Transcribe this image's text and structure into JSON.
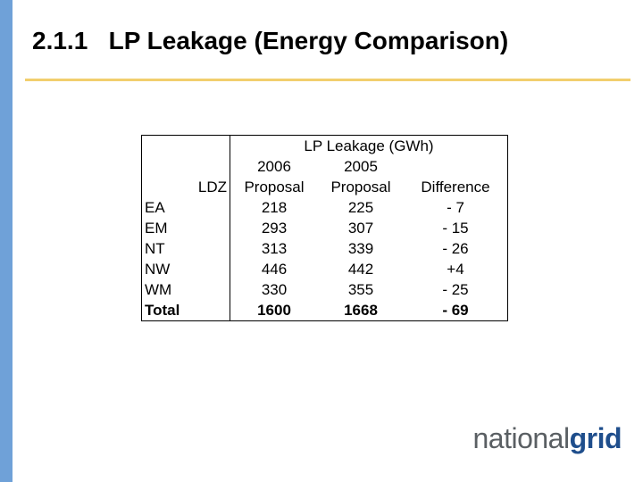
{
  "slide": {
    "title": "2.1.1   LP Leakage (Energy Comparison)"
  },
  "table": {
    "group_header": "LP Leakage (GWh)",
    "col_2006_year": "2006",
    "col_2006_label": "Proposal",
    "col_2005_year": "2005",
    "col_2005_label": "Proposal",
    "col_diff_label": "Difference",
    "ldz_header": "LDZ",
    "rows": [
      {
        "ldz": "EA",
        "v2006": "218",
        "v2005": "225",
        "diff": "- 7"
      },
      {
        "ldz": "EM",
        "v2006": "293",
        "v2005": "307",
        "diff": "- 15"
      },
      {
        "ldz": "NT",
        "v2006": "313",
        "v2005": "339",
        "diff": "- 26"
      },
      {
        "ldz": "NW",
        "v2006": "446",
        "v2005": "442",
        "diff": "+4"
      },
      {
        "ldz": "WM",
        "v2006": "330",
        "v2005": "355",
        "diff": "- 25"
      },
      {
        "ldz": "Total",
        "v2006": "1600",
        "v2005": "1668",
        "diff": "- 69"
      }
    ]
  },
  "logo": {
    "part1": "national",
    "part2": "grid"
  },
  "colors": {
    "left_bar": "#6fa1d8",
    "title_rule": "#f2cf6e",
    "logo_grey": "#5a5f63",
    "logo_blue": "#1f4e8c"
  }
}
